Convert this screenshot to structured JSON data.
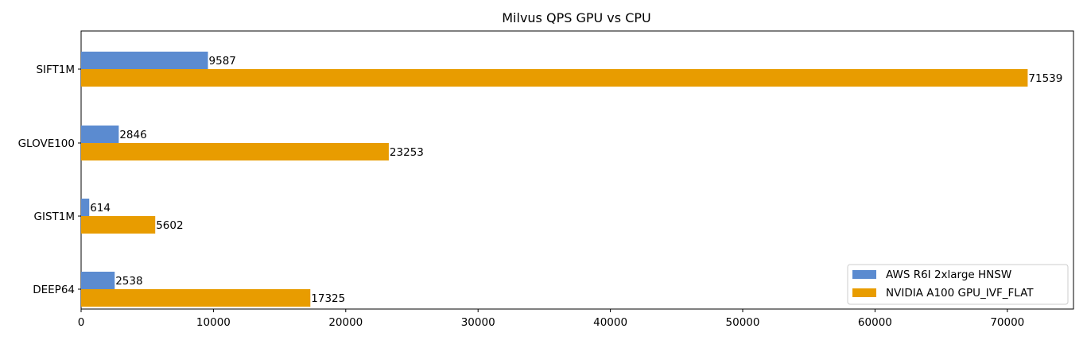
{
  "chart_data": {
    "type": "bar",
    "orientation": "horizontal",
    "title": "Milvus QPS GPU vs CPU",
    "xlabel": "",
    "ylabel": "",
    "categories": [
      "SIFT1M",
      "GLOVE100",
      "GIST1M",
      "DEEP64"
    ],
    "series": [
      {
        "name": "AWS R6I 2xlarge HNSW",
        "color": "#5b8bd0",
        "values": [
          9587,
          2846,
          614,
          2538
        ]
      },
      {
        "name": "NVIDIA A100 GPU_IVF_FLAT",
        "color": "#e89c00",
        "values": [
          71539,
          23253,
          5602,
          17325
        ]
      }
    ],
    "xlim": [
      0,
      75000
    ],
    "xticks": [
      0,
      10000,
      20000,
      30000,
      40000,
      50000,
      60000,
      70000
    ],
    "xtick_labels": [
      "0",
      "10000",
      "20000",
      "30000",
      "40000",
      "50000",
      "60000",
      "70000"
    ],
    "grid": false,
    "legend_position": "lower-right",
    "data_labels": true
  }
}
